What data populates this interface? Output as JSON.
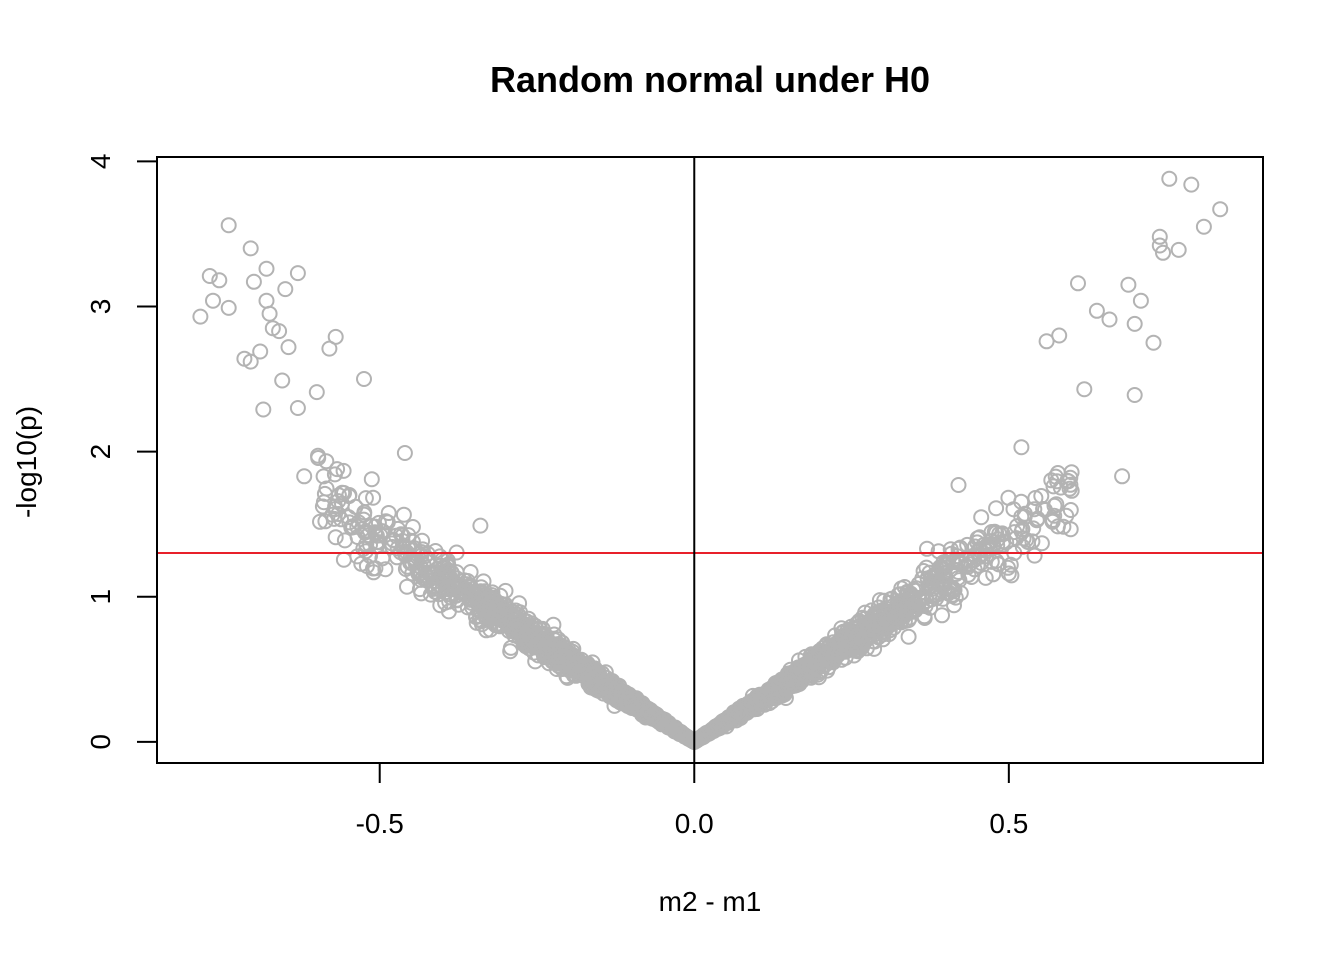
{
  "chart_data": {
    "type": "scatter",
    "title": "Random normal under H0",
    "xlabel": "m2 - m1",
    "ylabel": "-log10(p)",
    "xlim": [
      -0.854,
      0.904
    ],
    "ylim": [
      -0.146,
      4.03
    ],
    "x_ticks": [
      -0.5,
      0.0,
      0.5
    ],
    "x_tick_labels": [
      "-0.5",
      "0.0",
      "0.5"
    ],
    "y_ticks": [
      0,
      1,
      2,
      3,
      4
    ],
    "y_tick_labels": [
      "0",
      "1",
      "2",
      "3",
      "4"
    ],
    "grid": false,
    "legend": "none",
    "point_color": "#b3b3b3",
    "reference_lines": [
      {
        "orientation": "horizontal",
        "value": 1.301,
        "color": "#e8202a"
      },
      {
        "orientation": "vertical",
        "value": 0,
        "color": "#000000"
      }
    ],
    "notable_points": [
      {
        "x": -0.785,
        "y": 2.93
      },
      {
        "x": -0.77,
        "y": 3.21
      },
      {
        "x": -0.765,
        "y": 3.04
      },
      {
        "x": -0.755,
        "y": 3.18
      },
      {
        "x": -0.74,
        "y": 3.56
      },
      {
        "x": -0.74,
        "y": 2.99
      },
      {
        "x": -0.715,
        "y": 2.64
      },
      {
        "x": -0.705,
        "y": 3.4
      },
      {
        "x": -0.705,
        "y": 2.62
      },
      {
        "x": -0.7,
        "y": 3.17
      },
      {
        "x": -0.69,
        "y": 2.69
      },
      {
        "x": -0.685,
        "y": 2.29
      },
      {
        "x": -0.68,
        "y": 3.26
      },
      {
        "x": -0.68,
        "y": 3.04
      },
      {
        "x": -0.675,
        "y": 2.95
      },
      {
        "x": -0.67,
        "y": 2.85
      },
      {
        "x": -0.66,
        "y": 2.83
      },
      {
        "x": -0.655,
        "y": 2.49
      },
      {
        "x": -0.65,
        "y": 3.12
      },
      {
        "x": -0.645,
        "y": 2.72
      },
      {
        "x": -0.63,
        "y": 3.23
      },
      {
        "x": -0.63,
        "y": 2.3
      },
      {
        "x": -0.62,
        "y": 1.83
      },
      {
        "x": -0.6,
        "y": 2.41
      },
      {
        "x": -0.58,
        "y": 2.71
      },
      {
        "x": -0.57,
        "y": 2.79
      },
      {
        "x": -0.57,
        "y": 1.41
      },
      {
        "x": -0.525,
        "y": 2.5
      },
      {
        "x": -0.49,
        "y": 1.52
      },
      {
        "x": -0.46,
        "y": 1.99
      },
      {
        "x": -0.34,
        "y": 1.49
      },
      {
        "x": -0.3,
        "y": 1.04
      },
      {
        "x": 0.37,
        "y": 1.33
      },
      {
        "x": 0.42,
        "y": 1.77
      },
      {
        "x": 0.47,
        "y": 1.35
      },
      {
        "x": 0.5,
        "y": 1.16
      },
      {
        "x": 0.52,
        "y": 2.03
      },
      {
        "x": 0.56,
        "y": 2.76
      },
      {
        "x": 0.58,
        "y": 2.8
      },
      {
        "x": 0.6,
        "y": 1.73
      },
      {
        "x": 0.61,
        "y": 3.16
      },
      {
        "x": 0.62,
        "y": 2.43
      },
      {
        "x": 0.64,
        "y": 2.97
      },
      {
        "x": 0.66,
        "y": 2.91
      },
      {
        "x": 0.68,
        "y": 1.83
      },
      {
        "x": 0.69,
        "y": 3.15
      },
      {
        "x": 0.7,
        "y": 2.88
      },
      {
        "x": 0.7,
        "y": 2.39
      },
      {
        "x": 0.71,
        "y": 3.04
      },
      {
        "x": 0.73,
        "y": 2.75
      },
      {
        "x": 0.74,
        "y": 3.48
      },
      {
        "x": 0.74,
        "y": 3.42
      },
      {
        "x": 0.745,
        "y": 3.37
      },
      {
        "x": 0.755,
        "y": 3.88
      },
      {
        "x": 0.77,
        "y": 3.39
      },
      {
        "x": 0.79,
        "y": 3.84
      },
      {
        "x": 0.81,
        "y": 3.55
      },
      {
        "x": 0.836,
        "y": 3.67
      }
    ]
  }
}
